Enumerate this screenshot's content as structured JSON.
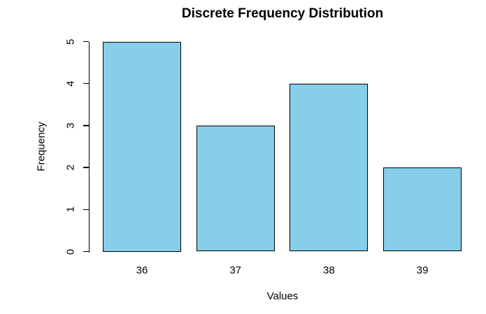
{
  "chart_data": {
    "type": "bar",
    "title": "Discrete Frequency Distribution",
    "xlabel": "Values",
    "ylabel": "Frequency",
    "categories": [
      "36",
      "37",
      "38",
      "39"
    ],
    "values": [
      5,
      3,
      4,
      2
    ],
    "ylim": [
      0,
      5
    ],
    "yticks": [
      0,
      1,
      2,
      3,
      4,
      5
    ],
    "bar_fill": "#87CEEB",
    "bar_border": "#000000",
    "background": "#FFFFFF",
    "grid": false,
    "legend": "none"
  }
}
